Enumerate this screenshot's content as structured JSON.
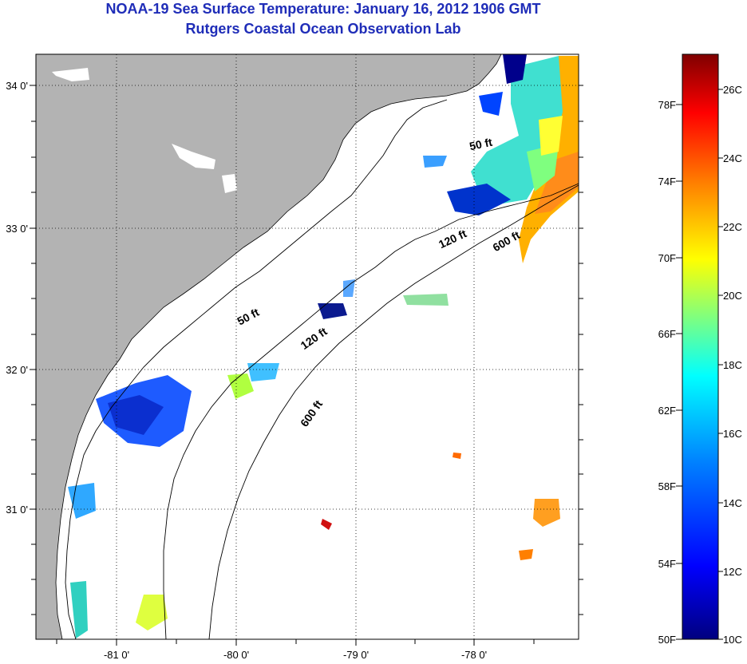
{
  "header": {
    "title": "NOAA-19 Sea Surface Temperature:  January 16, 2012 1906 GMT",
    "subtitle": "Rutgers Coastal Ocean Observation Lab"
  },
  "axes": {
    "x_ticks": [
      "-81 0'",
      "-80 0'",
      "-79 0'",
      "-78 0'"
    ],
    "y_ticks": [
      "34 0'",
      "33 0'",
      "32 0'",
      "31 0'"
    ]
  },
  "contours": [
    {
      "label": "50 ft"
    },
    {
      "label": "120 ft"
    },
    {
      "label": "600 ft"
    },
    {
      "label": "50 ft"
    },
    {
      "label": "120 ft"
    },
    {
      "label": "600 ft"
    }
  ],
  "colorbar": {
    "fahrenheit": [
      "78F",
      "74F",
      "70F",
      "66F",
      "62F",
      "58F",
      "54F",
      "50F"
    ],
    "celsius": [
      "26C",
      "24C",
      "22C",
      "20C",
      "18C",
      "16C",
      "14C",
      "12C",
      "10C"
    ],
    "colors": [
      "#00007f",
      "#0000ff",
      "#007fff",
      "#00ffff",
      "#7fff7f",
      "#ffff00",
      "#ff7f00",
      "#ff0000",
      "#7f0000"
    ]
  }
}
